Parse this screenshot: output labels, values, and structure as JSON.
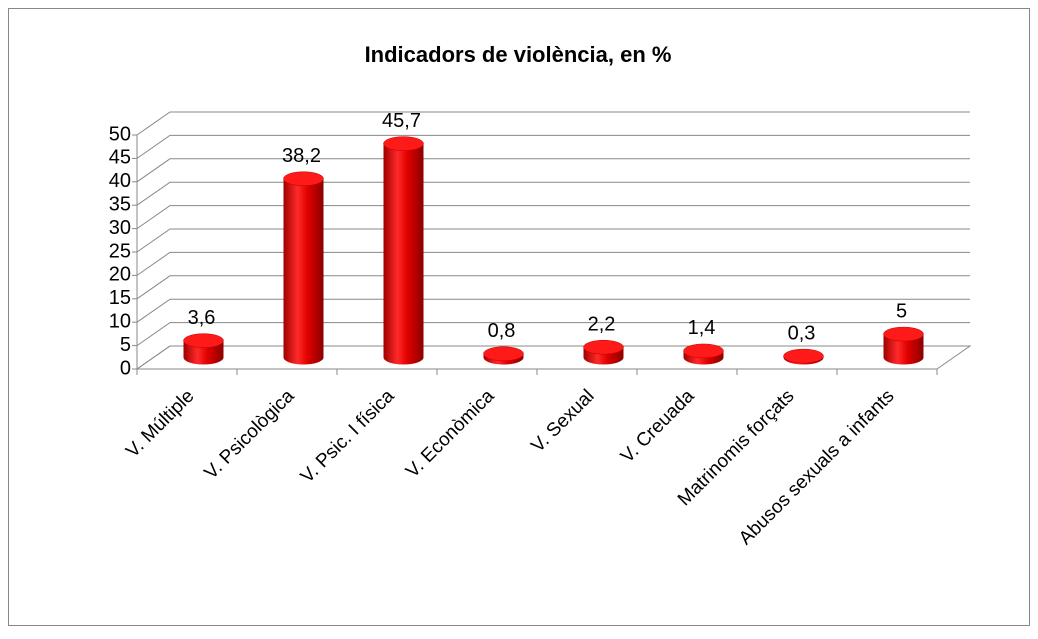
{
  "chart_data": {
    "type": "bar",
    "title": "Indicadors de violència, en %",
    "categories": [
      "V. Múltiple",
      "V. Psicològica",
      "V. Psic. I física",
      "V. Econòmica",
      "V. Sexual",
      "V. Creuada",
      "Matrinomis forçats",
      "Abusos sexuals a infants"
    ],
    "values": [
      3.6,
      38.2,
      45.7,
      0.8,
      2.2,
      1.4,
      0.3,
      5
    ],
    "value_labels": [
      "3,6",
      "38,2",
      "45,7",
      "0,8",
      "2,2",
      "1,4",
      "0,3",
      "5"
    ],
    "color": "#e00000",
    "ylim": [
      0,
      50
    ],
    "yticks": [
      0,
      5,
      10,
      15,
      20,
      25,
      30,
      35,
      40,
      45,
      50
    ],
    "grid": true
  }
}
